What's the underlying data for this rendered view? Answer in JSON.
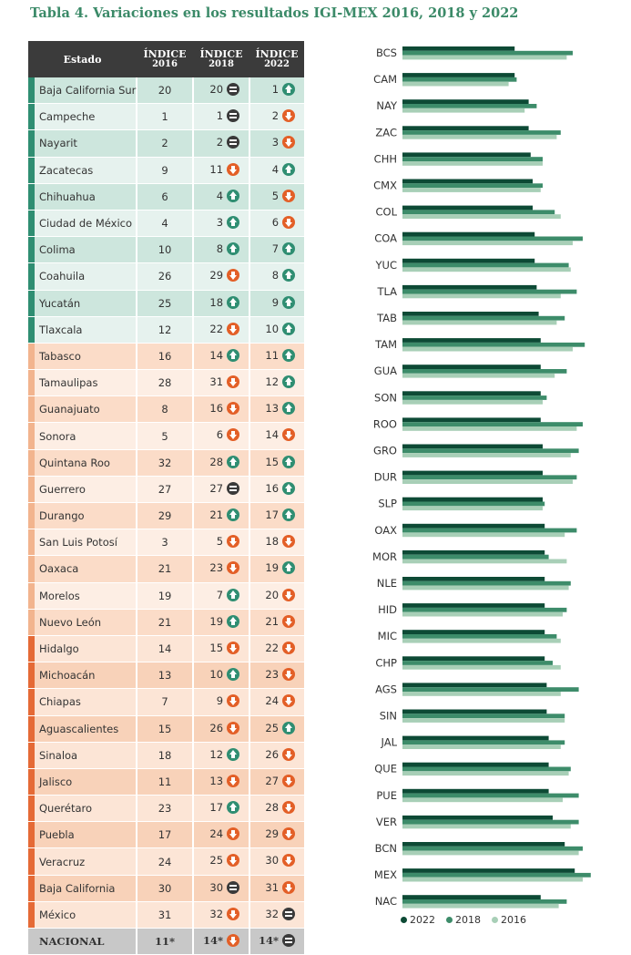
{
  "title": "Tabla 4. Variaciones en los resultados IGI-MEX 2016, 2018 y 2022",
  "table": {
    "headers": {
      "estado": "Estado",
      "indice": "ÍNDICE",
      "y2016": "2016",
      "y2018": "2018",
      "y2022": "2022"
    },
    "rows": [
      {
        "estado": "Baja California Sur",
        "v2016": "20",
        "v2018": "20",
        "i2018": "eq",
        "v2022": "1",
        "i2022": "up",
        "group": "g",
        "shade": 0
      },
      {
        "estado": "Campeche",
        "v2016": "1",
        "v2018": "1",
        "i2018": "eq",
        "v2022": "2",
        "i2022": "down",
        "group": "g",
        "shade": 1
      },
      {
        "estado": "Nayarit",
        "v2016": "2",
        "v2018": "2",
        "i2018": "eq",
        "v2022": "3",
        "i2022": "down",
        "group": "g",
        "shade": 0
      },
      {
        "estado": "Zacatecas",
        "v2016": "9",
        "v2018": "11",
        "i2018": "down",
        "v2022": "4",
        "i2022": "up",
        "group": "g",
        "shade": 1
      },
      {
        "estado": "Chihuahua",
        "v2016": "6",
        "v2018": "4",
        "i2018": "up",
        "v2022": "5",
        "i2022": "down",
        "group": "g",
        "shade": 0
      },
      {
        "estado": "Ciudad de México",
        "v2016": "4",
        "v2018": "3",
        "i2018": "up",
        "v2022": "6",
        "i2022": "down",
        "group": "g",
        "shade": 1
      },
      {
        "estado": "Colima",
        "v2016": "10",
        "v2018": "8",
        "i2018": "up",
        "v2022": "7",
        "i2022": "up",
        "group": "g",
        "shade": 0
      },
      {
        "estado": "Coahuila",
        "v2016": "26",
        "v2018": "29",
        "i2018": "down",
        "v2022": "8",
        "i2022": "up",
        "group": "g",
        "shade": 1
      },
      {
        "estado": "Yucatán",
        "v2016": "25",
        "v2018": "18",
        "i2018": "up",
        "v2022": "9",
        "i2022": "up",
        "group": "g",
        "shade": 0
      },
      {
        "estado": "Tlaxcala",
        "v2016": "12",
        "v2018": "22",
        "i2018": "down",
        "v2022": "10",
        "i2022": "up",
        "group": "g",
        "shade": 1
      },
      {
        "estado": "Tabasco",
        "v2016": "16",
        "v2018": "14",
        "i2018": "up",
        "v2022": "11",
        "i2022": "up",
        "group": "o",
        "shade": 0
      },
      {
        "estado": "Tamaulipas",
        "v2016": "28",
        "v2018": "31",
        "i2018": "down",
        "v2022": "12",
        "i2022": "up",
        "group": "o",
        "shade": 1
      },
      {
        "estado": "Guanajuato",
        "v2016": "8",
        "v2018": "16",
        "i2018": "down",
        "v2022": "13",
        "i2022": "up",
        "group": "o",
        "shade": 0
      },
      {
        "estado": "Sonora",
        "v2016": "5",
        "v2018": "6",
        "i2018": "down",
        "v2022": "14",
        "i2022": "down",
        "group": "o",
        "shade": 1
      },
      {
        "estado": "Quintana Roo",
        "v2016": "32",
        "v2018": "28",
        "i2018": "up",
        "v2022": "15",
        "i2022": "up",
        "group": "o",
        "shade": 0
      },
      {
        "estado": "Guerrero",
        "v2016": "27",
        "v2018": "27",
        "i2018": "eq",
        "v2022": "16",
        "i2022": "up",
        "group": "o",
        "shade": 1
      },
      {
        "estado": "Durango",
        "v2016": "29",
        "v2018": "21",
        "i2018": "up",
        "v2022": "17",
        "i2022": "up",
        "group": "o",
        "shade": 0
      },
      {
        "estado": "San Luis Potosí",
        "v2016": "3",
        "v2018": "5",
        "i2018": "down",
        "v2022": "18",
        "i2022": "down",
        "group": "o",
        "shade": 1
      },
      {
        "estado": "Oaxaca",
        "v2016": "21",
        "v2018": "23",
        "i2018": "down",
        "v2022": "19",
        "i2022": "up",
        "group": "o",
        "shade": 0
      },
      {
        "estado": "Morelos",
        "v2016": "19",
        "v2018": "7",
        "i2018": "up",
        "v2022": "20",
        "i2022": "down",
        "group": "o",
        "shade": 1
      },
      {
        "estado": "Nuevo León",
        "v2016": "21",
        "v2018": "19",
        "i2018": "up",
        "v2022": "21",
        "i2022": "down",
        "group": "o",
        "shade": 0
      },
      {
        "estado": "Hidalgo",
        "v2016": "14",
        "v2018": "15",
        "i2018": "down",
        "v2022": "22",
        "i2022": "down",
        "group": "r",
        "shade": 1
      },
      {
        "estado": "Michoacán",
        "v2016": "13",
        "v2018": "10",
        "i2018": "up",
        "v2022": "23",
        "i2022": "down",
        "group": "r",
        "shade": 0
      },
      {
        "estado": "Chiapas",
        "v2016": "7",
        "v2018": "9",
        "i2018": "down",
        "v2022": "24",
        "i2022": "down",
        "group": "r",
        "shade": 1
      },
      {
        "estado": "Aguascalientes",
        "v2016": "15",
        "v2018": "26",
        "i2018": "down",
        "v2022": "25",
        "i2022": "up",
        "group": "r",
        "shade": 0
      },
      {
        "estado": "Sinaloa",
        "v2016": "18",
        "v2018": "12",
        "i2018": "up",
        "v2022": "26",
        "i2022": "down",
        "group": "r",
        "shade": 1
      },
      {
        "estado": "Jalisco",
        "v2016": "11",
        "v2018": "13",
        "i2018": "down",
        "v2022": "27",
        "i2022": "down",
        "group": "r",
        "shade": 0
      },
      {
        "estado": "Querétaro",
        "v2016": "23",
        "v2018": "17",
        "i2018": "up",
        "v2022": "28",
        "i2022": "down",
        "group": "r",
        "shade": 1
      },
      {
        "estado": "Puebla",
        "v2016": "17",
        "v2018": "24",
        "i2018": "down",
        "v2022": "29",
        "i2022": "down",
        "group": "r",
        "shade": 0
      },
      {
        "estado": "Veracruz",
        "v2016": "24",
        "v2018": "25",
        "i2018": "down",
        "v2022": "30",
        "i2022": "down",
        "group": "r",
        "shade": 1
      },
      {
        "estado": "Baja California",
        "v2016": "30",
        "v2018": "30",
        "i2018": "eq",
        "v2022": "31",
        "i2022": "down",
        "group": "r",
        "shade": 0
      },
      {
        "estado": "México",
        "v2016": "31",
        "v2018": "32",
        "i2018": "down",
        "v2022": "32",
        "i2022": "eq",
        "group": "r",
        "shade": 1
      }
    ],
    "nacional": {
      "estado": "NACIONAL",
      "v2016": "11*",
      "v2018": "14*",
      "i2018": "down",
      "v2022": "14*",
      "i2022": "eq"
    }
  },
  "chart_data": {
    "type": "bar",
    "orientation": "horizontal",
    "categories": [
      "BCS",
      "CAM",
      "NAY",
      "ZAC",
      "CHH",
      "CMX",
      "COL",
      "COA",
      "YUC",
      "TLA",
      "TAB",
      "TAM",
      "GUA",
      "SON",
      "ROO",
      "GRO",
      "DUR",
      "SLP",
      "OAX",
      "MOR",
      "NLE",
      "HID",
      "MIC",
      "CHP",
      "AGS",
      "SIN",
      "JAL",
      "QUE",
      "PUE",
      "VER",
      "BCN",
      "MEX",
      "NAC"
    ],
    "series": [
      {
        "name": "2022",
        "color": "#0d4a35",
        "values": [
          56,
          56,
          63,
          63,
          64,
          65,
          65,
          66,
          66,
          67,
          68,
          69,
          69,
          69,
          69,
          70,
          70,
          70,
          71,
          71,
          71,
          71,
          71,
          71,
          72,
          72,
          73,
          73,
          73,
          75,
          81,
          86,
          69
        ]
      },
      {
        "name": "2018",
        "color": "#3d8c6a",
        "values": [
          85,
          57,
          67,
          79,
          70,
          70,
          76,
          90,
          83,
          87,
          81,
          91,
          82,
          72,
          90,
          88,
          87,
          71,
          87,
          73,
          84,
          82,
          77,
          75,
          88,
          81,
          81,
          84,
          88,
          88,
          90,
          94,
          82
        ]
      },
      {
        "name": "2016",
        "color": "#a8cfb7",
        "values": [
          82,
          53,
          61,
          77,
          70,
          69,
          79,
          85,
          84,
          79,
          77,
          85,
          76,
          70,
          87,
          84,
          85,
          70,
          81,
          82,
          83,
          80,
          79,
          79,
          79,
          81,
          79,
          83,
          80,
          84,
          88,
          90,
          78
        ]
      }
    ],
    "xlim": [
      0,
      100
    ],
    "legend": [
      "2022",
      "2018",
      "2016"
    ],
    "legend_position": "bottom"
  }
}
